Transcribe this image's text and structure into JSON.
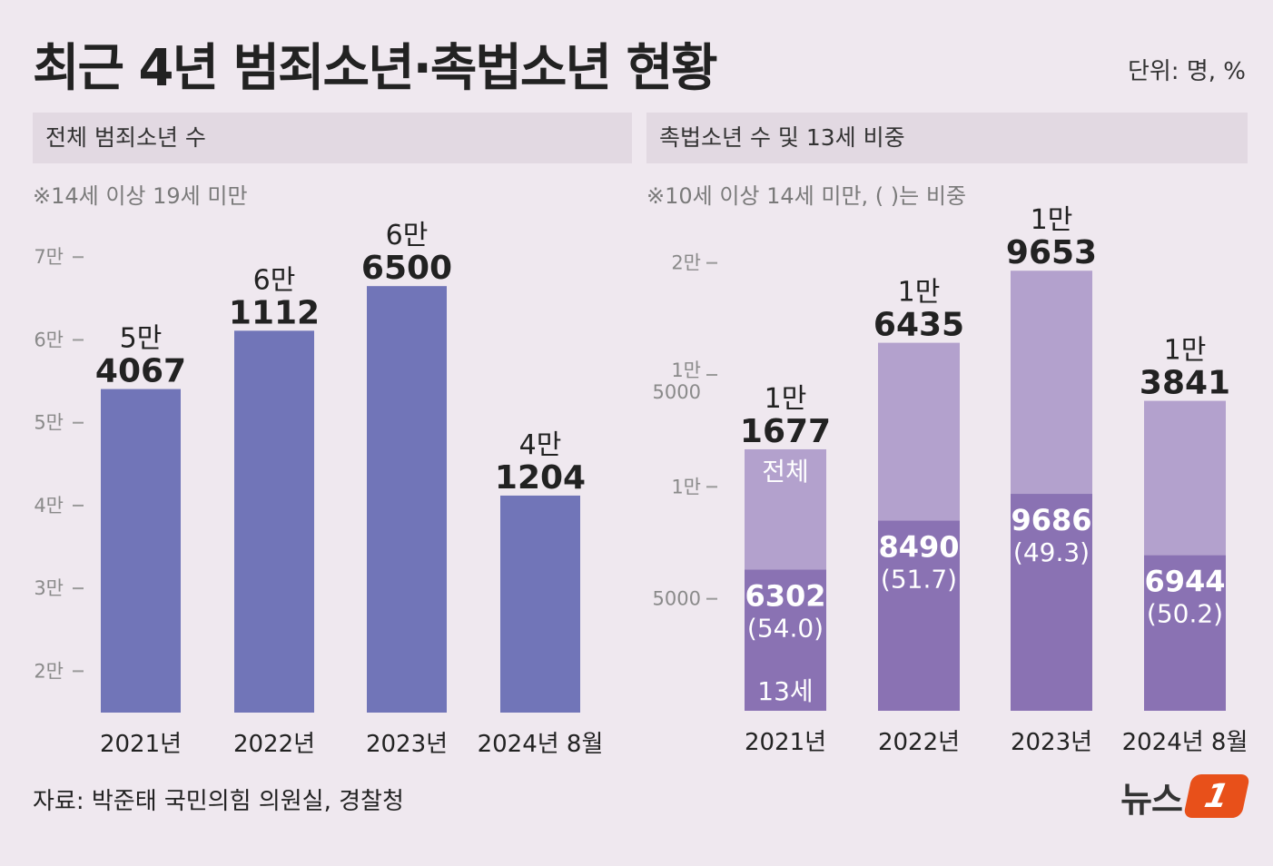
{
  "title": "최근 4년 범죄소년·촉법소년 현황",
  "unit": "단위: 명, %",
  "source": "자료: 박준태 국민의힘 의원실, 경찰청",
  "logo": {
    "text": "뉴스",
    "badge": "1"
  },
  "colors": {
    "background": "#efe8ef",
    "header": "#e2d9e2",
    "bar_left": "#7175b8",
    "bar_total": "#b3a1cd",
    "bar_13": "#8a72b3",
    "logo": "#e8501a"
  },
  "chart_data": [
    {
      "type": "bar",
      "title": "전체 범죄소년 수",
      "note": "※14세 이상 19세 미만",
      "categories": [
        "2021년",
        "2022년",
        "2023년",
        "2024년 8월"
      ],
      "values": [
        54067,
        61112,
        66500,
        41204
      ],
      "value_labels": [
        [
          "5만",
          "4067"
        ],
        [
          "6만",
          "1112"
        ],
        [
          "6만",
          "6500"
        ],
        [
          "4만",
          "1204"
        ]
      ],
      "y_ticks": [
        {
          "value": 20000,
          "label": "2만"
        },
        {
          "value": 30000,
          "label": "3만"
        },
        {
          "value": 40000,
          "label": "4만"
        },
        {
          "value": 50000,
          "label": "5만"
        },
        {
          "value": 60000,
          "label": "6만"
        },
        {
          "value": 70000,
          "label": "7만"
        }
      ],
      "ylim": [
        15000,
        72000
      ]
    },
    {
      "type": "bar",
      "title": "촉법소년 수 및 13세 비중",
      "note": "※10세 이상 14세 미만, ( )는 비중",
      "categories": [
        "2021년",
        "2022년",
        "2023년",
        "2024년 8월"
      ],
      "series": [
        {
          "name": "전체",
          "values": [
            11677,
            16435,
            19653,
            13841
          ]
        },
        {
          "name": "13세",
          "values": [
            6302,
            8490,
            9686,
            6944
          ],
          "share": [
            "(54.0)",
            "(51.7)",
            "(49.3)",
            "(50.2)"
          ]
        }
      ],
      "total_labels": [
        [
          "1만",
          "1677"
        ],
        [
          "1만",
          "6435"
        ],
        [
          "1만",
          "9653"
        ],
        [
          "1만",
          "3841"
        ]
      ],
      "series_tags": {
        "total": "전체",
        "age13": "13세"
      },
      "y_ticks": [
        {
          "value": 5000,
          "label": "5000"
        },
        {
          "value": 10000,
          "label": "1만"
        },
        {
          "value": 15000,
          "label": "1만 5000"
        },
        {
          "value": 20000,
          "label": "2만"
        }
      ],
      "ylim": [
        0,
        21000
      ]
    }
  ]
}
